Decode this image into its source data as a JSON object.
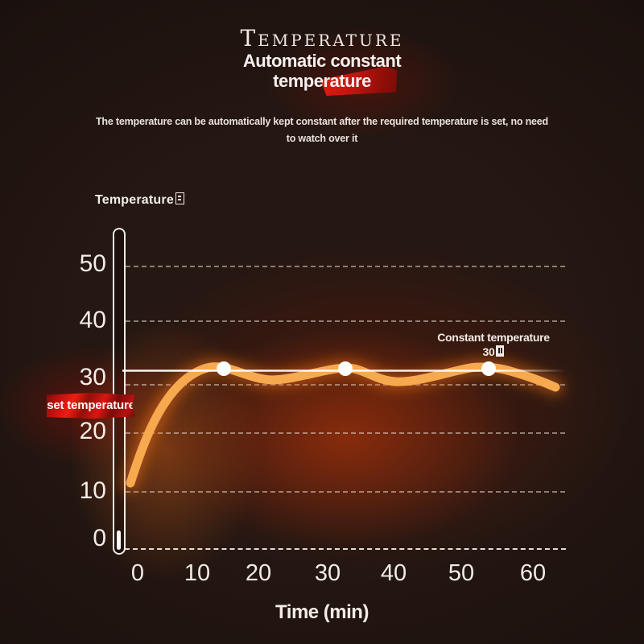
{
  "page": {
    "title": "Temperature",
    "subtitle_line1": "Automatic constant",
    "subtitle_line2": "temperature",
    "description_line1": "The temperature can be automatically kept constant after the required temperature is set, no need",
    "description_line2": "to watch over it"
  },
  "chart": {
    "y_axis_label": "Temperature",
    "x_axis_label": "Time (min)",
    "set_label": "set temperature",
    "annotation_line1": "Constant temperature",
    "annotation_value": "30"
  },
  "chart_data": {
    "type": "line",
    "title": "Automatic constant temperature",
    "xlabel": "Time (min)",
    "ylabel": "Temperature℃ (degree glyph shown as missing-glyph box)",
    "x_ticks": [
      0,
      10,
      20,
      30,
      40,
      50,
      60
    ],
    "y_ticks": [
      0,
      10,
      20,
      30,
      40,
      50
    ],
    "xlim": [
      0,
      65
    ],
    "ylim": [
      0,
      57
    ],
    "grid": "horizontal dashed lines at each y tick",
    "legend": "none",
    "series": [
      {
        "name": "temperature",
        "x": [
          0,
          3,
          6,
          10,
          13,
          17,
          21,
          25,
          29,
          32,
          36,
          40,
          44,
          48,
          51,
          54,
          58,
          61,
          64
        ],
        "y": [
          11,
          17,
          24,
          29,
          31,
          30.7,
          29.8,
          30.1,
          30.8,
          31.2,
          30.4,
          29.6,
          29.4,
          30.2,
          30.9,
          31.2,
          30.5,
          29.8,
          28.5
        ]
      }
    ],
    "reference_line": {
      "y": 31,
      "label": "set temperature"
    },
    "markers": [
      {
        "x": 13,
        "y": 31
      },
      {
        "x": 32,
        "y": 31
      },
      {
        "x": 54,
        "y": 31
      }
    ],
    "annotation": {
      "text": "Constant temperature 30℃",
      "near_x": 54,
      "near_y": 34
    }
  },
  "colors": {
    "curve": "#f6a94e",
    "curve_glow": "#ec6e19",
    "banner_red": "#d31410",
    "set_line": "#ffffff",
    "grid_dash": "#ded2c8",
    "background": "#140d0b",
    "text": "#f2ece7"
  }
}
